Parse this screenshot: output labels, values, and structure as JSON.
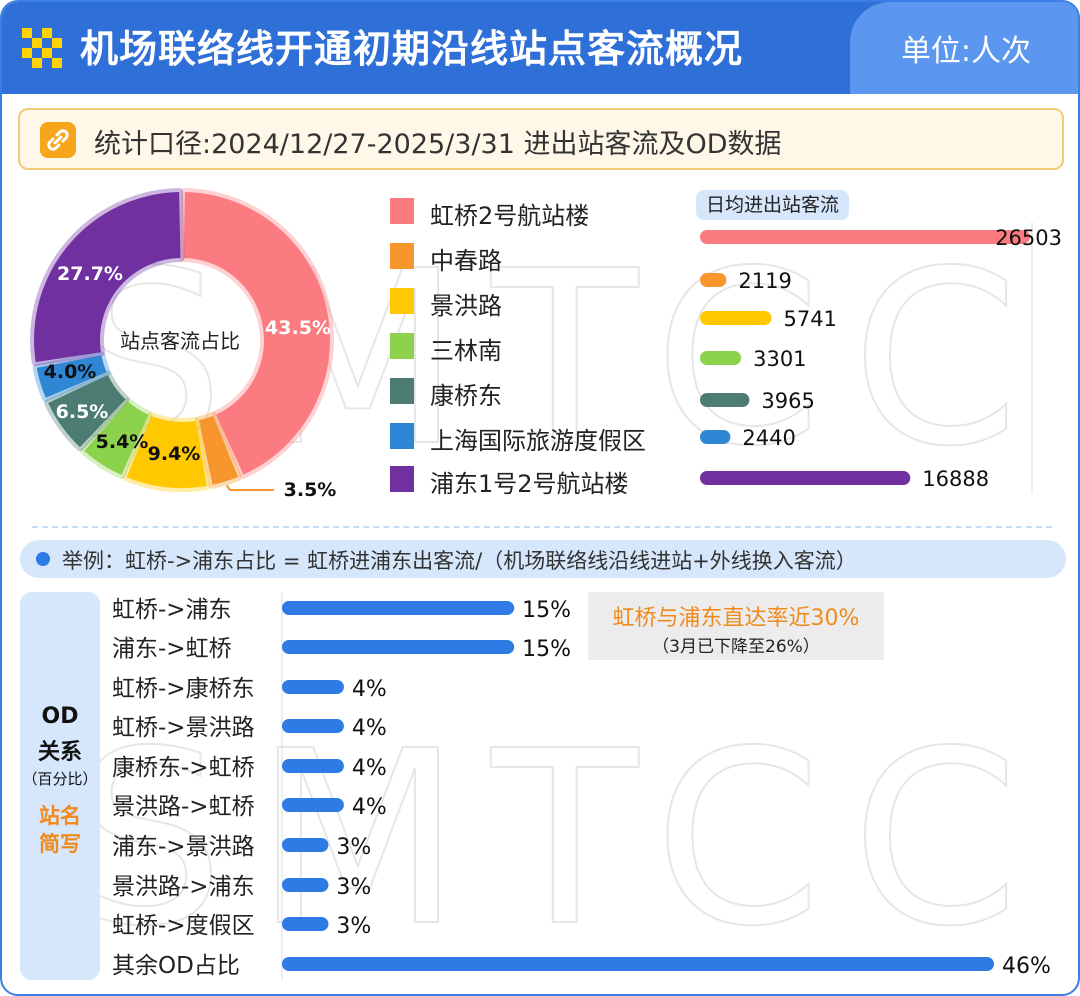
{
  "header": {
    "title": "机场联络线开通初期沿线站点客流概况",
    "unit": "单位:人次"
  },
  "scope": {
    "text": "统计口径:2024/12/27-2025/3/31 进出站客流及OD数据"
  },
  "colors": {
    "header": "#2f6fd8",
    "od_bar": "#2f7be6",
    "accent_orange": "#f08a1c"
  },
  "chart_data": [
    {
      "type": "pie",
      "title": "站点客流占比",
      "categories": [
        "虹桥2号航站楼",
        "中春路",
        "景洪路",
        "三林南",
        "康桥东",
        "上海国际旅游度假区",
        "浦东1号2号航站楼"
      ],
      "values": [
        43.5,
        3.5,
        9.4,
        5.4,
        6.5,
        4.0,
        27.7
      ],
      "labels": [
        "43.5%",
        "3.5%",
        "9.4%",
        "5.4%",
        "6.5%",
        "4.0%",
        "27.7%"
      ],
      "colors": [
        "#fb7c80",
        "#f7962d",
        "#ffc800",
        "#8cd24c",
        "#4c7c72",
        "#2e86d4",
        "#7030a0"
      ],
      "legend": "right"
    },
    {
      "type": "bar",
      "title": "日均进出站客流",
      "categories": [
        "虹桥2号航站楼",
        "中春路",
        "景洪路",
        "三林南",
        "康桥东",
        "上海国际旅游度假区",
        "浦东1号2号航站楼"
      ],
      "values": [
        26503,
        2119,
        5741,
        3301,
        3965,
        2440,
        16888
      ],
      "labels": [
        "26503",
        "2119",
        "5741",
        "3301",
        "3965",
        "2440",
        "16888"
      ],
      "colors": [
        "#fb7c80",
        "#f7962d",
        "#ffc800",
        "#8cd24c",
        "#4c7c72",
        "#2e86d4",
        "#7030a0"
      ],
      "orientation": "horizontal"
    },
    {
      "type": "bar",
      "title": "",
      "categories": [
        "虹桥->浦东",
        "浦东->虹桥",
        "虹桥->康桥东",
        "虹桥->景洪路",
        "康桥东->虹桥",
        "景洪路->虹桥",
        "浦东->景洪路",
        "景洪路->浦东",
        "虹桥->度假区",
        "其余OD占比"
      ],
      "values": [
        15,
        15,
        4,
        4,
        4,
        4,
        3,
        3,
        3,
        46
      ],
      "labels": [
        "15%",
        "15%",
        "4%",
        "4%",
        "4%",
        "4%",
        "3%",
        "3%",
        "3%",
        "46%"
      ],
      "orientation": "horizontal",
      "color": "#2f7be6"
    }
  ],
  "note": {
    "text": "举例：虹桥->浦东占比 = 虹桥进浦东出客流/（机场联络线沿线进站+外线换入客流）"
  },
  "od_side": {
    "line1": "OD",
    "line2": "关系",
    "line3": "（百分比）",
    "line4": "站名",
    "line5": "简写"
  },
  "callout": {
    "main": "虹桥与浦东直达率近30%",
    "sub": "（3月已下降至26%）"
  },
  "watermark": "SMTCC"
}
